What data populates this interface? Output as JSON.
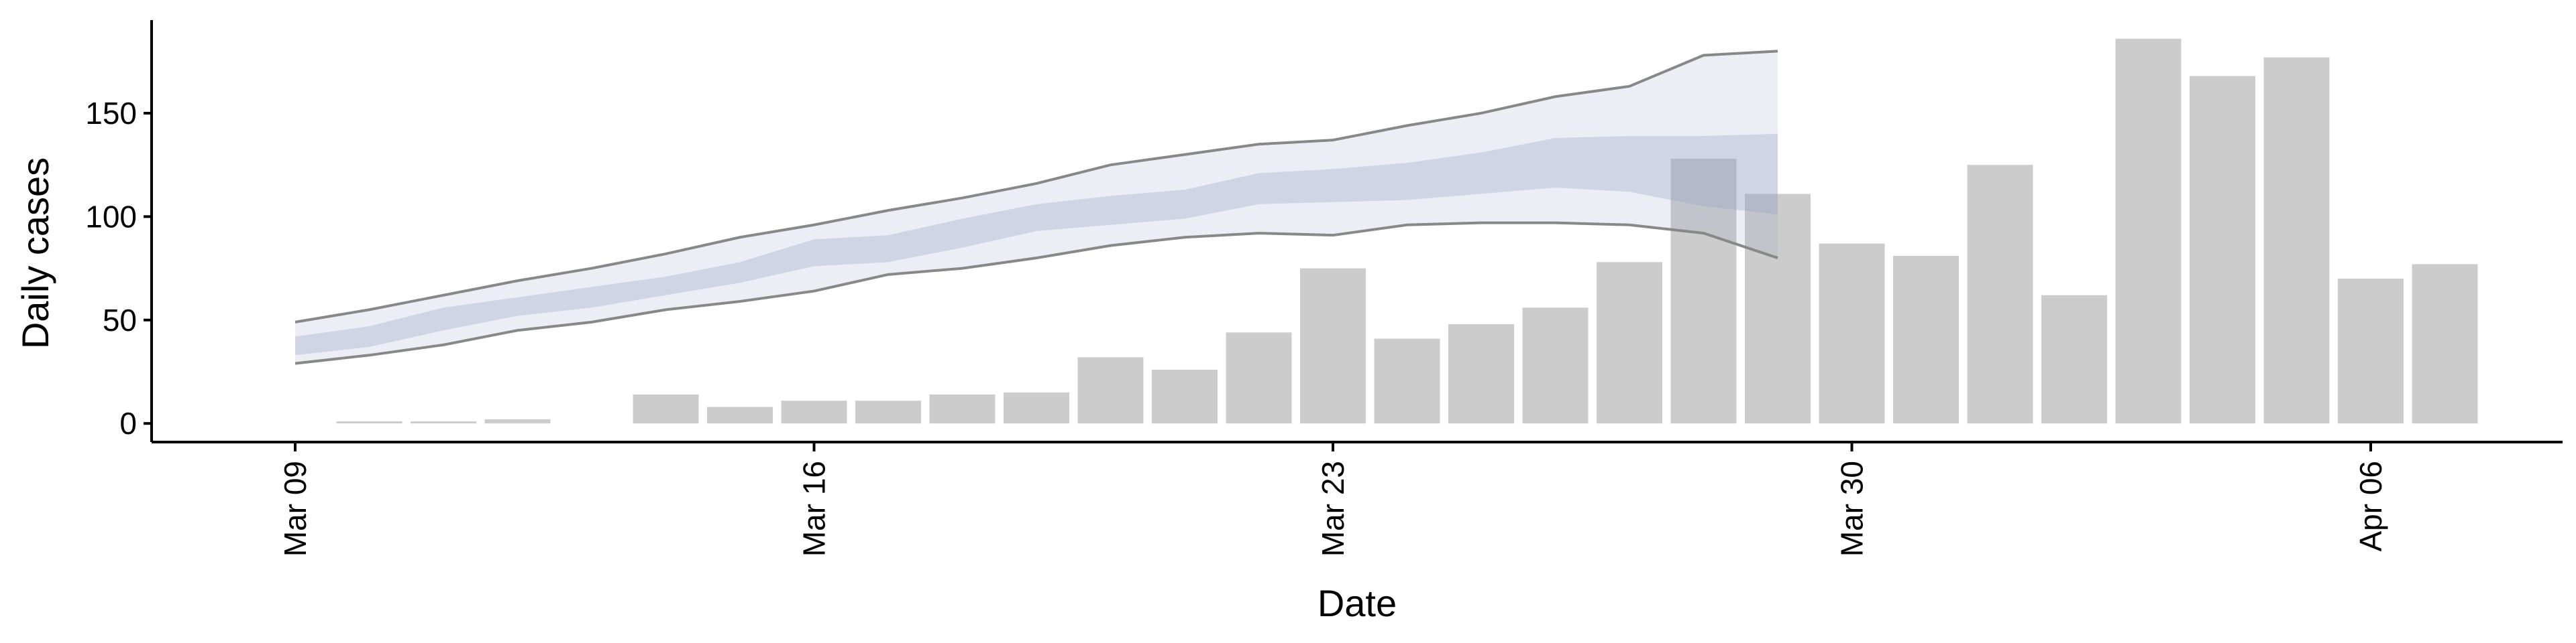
{
  "chart_data": {
    "type": "bar",
    "xlabel": "Date",
    "ylabel": "Daily cases",
    "x_ticks": [
      "Mar 09",
      "Mar 16",
      "Mar 23",
      "Mar 30",
      "Apr 06"
    ],
    "y_ticks": [
      0,
      50,
      100,
      150
    ],
    "ylim": [
      -9,
      195
    ],
    "dates": [
      "Mar 09",
      "Mar 10",
      "Mar 11",
      "Mar 12",
      "Mar 13",
      "Mar 14",
      "Mar 15",
      "Mar 16",
      "Mar 17",
      "Mar 18",
      "Mar 19",
      "Mar 20",
      "Mar 21",
      "Mar 22",
      "Mar 23",
      "Mar 24",
      "Mar 25",
      "Mar 26",
      "Mar 27",
      "Mar 28",
      "Mar 29",
      "Mar 30",
      "Mar 31",
      "Apr 01",
      "Apr 02",
      "Apr 03",
      "Apr 04",
      "Apr 05",
      "Apr 06",
      "Apr 07"
    ],
    "bar_series": {
      "values": [
        0,
        1,
        1,
        2,
        0,
        14,
        8,
        11,
        11,
        14,
        15,
        32,
        26,
        44,
        75,
        41,
        48,
        56,
        78,
        128,
        111,
        87,
        81,
        125,
        62,
        186,
        168,
        177,
        70,
        77
      ],
      "color": "#cccccc"
    },
    "forecast": {
      "dates": [
        "Mar 09",
        "Mar 10",
        "Mar 11",
        "Mar 12",
        "Mar 13",
        "Mar 14",
        "Mar 15",
        "Mar 16",
        "Mar 17",
        "Mar 18",
        "Mar 19",
        "Mar 20",
        "Mar 21",
        "Mar 22",
        "Mar 23",
        "Mar 24",
        "Mar 25",
        "Mar 26",
        "Mar 27",
        "Mar 28",
        "Mar 29"
      ],
      "outer_upper": [
        49,
        55,
        62,
        69,
        75,
        82,
        90,
        96,
        103,
        109,
        116,
        125,
        130,
        135,
        137,
        144,
        150,
        158,
        163,
        178,
        180
      ],
      "outer_lower": [
        29,
        33,
        38,
        45,
        49,
        55,
        59,
        64,
        72,
        75,
        80,
        86,
        90,
        92,
        91,
        96,
        97,
        97,
        96,
        92,
        80
      ],
      "inner_upper": [
        42,
        47,
        56,
        61,
        66,
        71,
        78,
        89,
        91,
        99,
        106,
        110,
        113,
        121,
        123,
        126,
        131,
        138,
        139,
        139,
        140
      ],
      "inner_lower": [
        33,
        37,
        45,
        52,
        56,
        62,
        68,
        76,
        78,
        85,
        93,
        96,
        99,
        106,
        107,
        108,
        111,
        114,
        112,
        105,
        101
      ],
      "band_color": "#9aa3c7",
      "line_color": "#888888"
    }
  }
}
